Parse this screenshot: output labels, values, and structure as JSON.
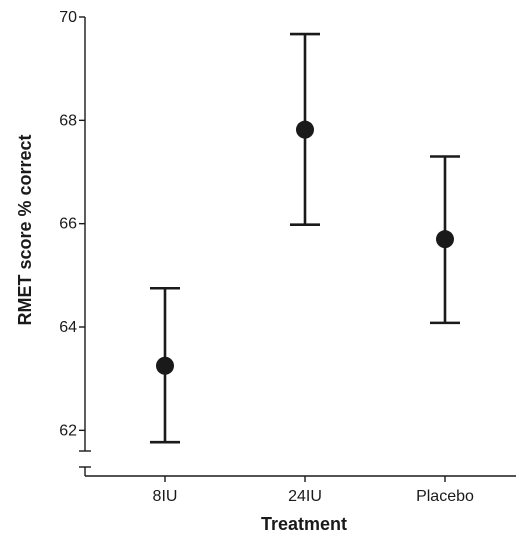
{
  "chart_data": {
    "type": "scatter",
    "xlabel": "Treatment",
    "ylabel": "RMET score % correct",
    "ylim": [
      61.6,
      70
    ],
    "yticks": [
      62,
      64,
      66,
      68,
      70
    ],
    "y_axis_break": true,
    "grid": false,
    "categories": [
      "8IU",
      "24IU",
      "Placebo"
    ],
    "series": [
      {
        "mean": [
          63.25,
          67.82,
          65.7
        ],
        "lower": [
          61.77,
          65.98,
          64.08
        ],
        "upper": [
          64.75,
          69.67,
          67.3
        ]
      }
    ],
    "colors": {
      "ink": "#1a1a1a"
    }
  }
}
